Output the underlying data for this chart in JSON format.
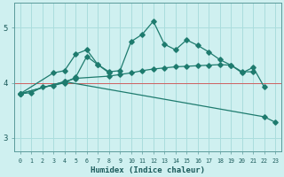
{
  "xlabel": "Humidex (Indice chaleur)",
  "background_color": "#cff0f0",
  "grid_color": "#aadddd",
  "line_color": "#1e7b6e",
  "red_line_color": "#d06060",
  "x_values": [
    0,
    1,
    2,
    3,
    4,
    5,
    6,
    7,
    8,
    9,
    10,
    11,
    12,
    13,
    14,
    15,
    16,
    17,
    18,
    19,
    20,
    21,
    22,
    23
  ],
  "line1": [
    3.8,
    3.82,
    3.92,
    3.95,
    4.0,
    4.1,
    4.48,
    4.33,
    4.2,
    4.22,
    4.75,
    4.88,
    5.12,
    4.7,
    4.6,
    4.78,
    4.68,
    4.56,
    4.42,
    4.32,
    4.18,
    4.28,
    3.92,
    null
  ],
  "line2": [
    3.8,
    null,
    null,
    4.18,
    4.22,
    4.52,
    4.6,
    4.33,
    4.18,
    null,
    null,
    null,
    null,
    null,
    null,
    null,
    null,
    null,
    null,
    null,
    null,
    null,
    null,
    null
  ],
  "line3": [
    3.8,
    null,
    null,
    null,
    4.02,
    4.08,
    null,
    null,
    4.12,
    4.15,
    4.18,
    4.22,
    4.25,
    4.27,
    4.29,
    4.3,
    4.31,
    4.32,
    4.33,
    4.32,
    4.2,
    4.2,
    null,
    null
  ],
  "line4": [
    3.8,
    null,
    null,
    null,
    4.02,
    null,
    null,
    null,
    null,
    null,
    null,
    null,
    null,
    null,
    null,
    null,
    null,
    null,
    null,
    null,
    null,
    null,
    3.38,
    3.28
  ],
  "ylim": [
    2.75,
    5.45
  ],
  "yticks": [
    3,
    4,
    5
  ],
  "xlim": [
    -0.5,
    23.5
  ],
  "red_line_y": 4.0
}
